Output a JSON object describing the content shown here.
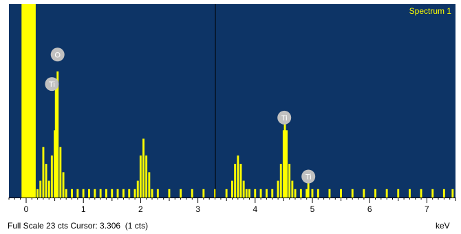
{
  "chart_data": {
    "type": "bar",
    "title": "",
    "series_name": "Spectrum 1",
    "xlabel": "",
    "x_unit": "keV",
    "ylabel": "",
    "xlim": [
      -0.3,
      7.5
    ],
    "ylim": [
      0,
      23
    ],
    "xticks": [
      0,
      1,
      2,
      3,
      4,
      5,
      6,
      7
    ],
    "cursor_keV": 3.306,
    "grid": false,
    "x": [
      0.0,
      0.05,
      0.1,
      0.15,
      0.2,
      0.25,
      0.3,
      0.35,
      0.4,
      0.45,
      0.5,
      0.52,
      0.55,
      0.6,
      0.65,
      0.7,
      0.8,
      0.9,
      1.0,
      1.1,
      1.2,
      1.3,
      1.4,
      1.5,
      1.6,
      1.7,
      1.8,
      1.9,
      1.95,
      2.0,
      2.05,
      2.1,
      2.15,
      2.2,
      2.3,
      2.5,
      2.7,
      2.9,
      3.1,
      3.3,
      3.5,
      3.6,
      3.65,
      3.7,
      3.75,
      3.8,
      3.85,
      3.9,
      4.0,
      4.1,
      4.2,
      4.3,
      4.4,
      4.45,
      4.5,
      4.52,
      4.55,
      4.6,
      4.65,
      4.7,
      4.8,
      4.9,
      4.93,
      5.0,
      5.1,
      5.3,
      5.5,
      5.7,
      5.9,
      6.1,
      6.3,
      6.5,
      6.7,
      6.9,
      7.1,
      7.3,
      7.45
    ],
    "y": [
      23,
      23,
      23,
      23,
      1,
      2,
      6,
      4,
      2,
      5,
      8,
      13,
      15,
      6,
      3,
      1,
      1,
      1,
      1,
      1,
      1,
      1,
      1,
      1,
      1,
      1,
      1,
      1,
      2,
      5,
      7,
      5,
      3,
      1,
      1,
      1,
      1,
      1,
      1,
      1,
      1,
      2,
      4,
      5,
      4,
      2,
      1,
      1,
      1,
      1,
      1,
      1,
      2,
      4,
      8,
      10,
      8,
      4,
      2,
      1,
      1,
      1,
      2,
      1,
      1,
      1,
      1,
      1,
      1,
      1,
      1,
      1,
      1,
      1,
      1,
      1,
      1
    ],
    "peak_labels": [
      {
        "text": "O",
        "x": 0.55,
        "y": 17
      },
      {
        "text": "Ti",
        "x": 0.45,
        "y": 13.5
      },
      {
        "text": "Ti",
        "x": 4.51,
        "y": 9.5
      },
      {
        "text": "Ti",
        "x": 4.93,
        "y": 2.5
      }
    ],
    "colors": {
      "background": "#0d3466",
      "bars": "#ffff00",
      "axis": "#000000",
      "cursor": "#000000",
      "peak_label": "#c0c0c0",
      "series_name": "#ffff00"
    }
  },
  "status": {
    "full_scale_text": "Full Scale 23 cts Cursor: 3.306  (1 cts)",
    "unit_label": "keV"
  }
}
